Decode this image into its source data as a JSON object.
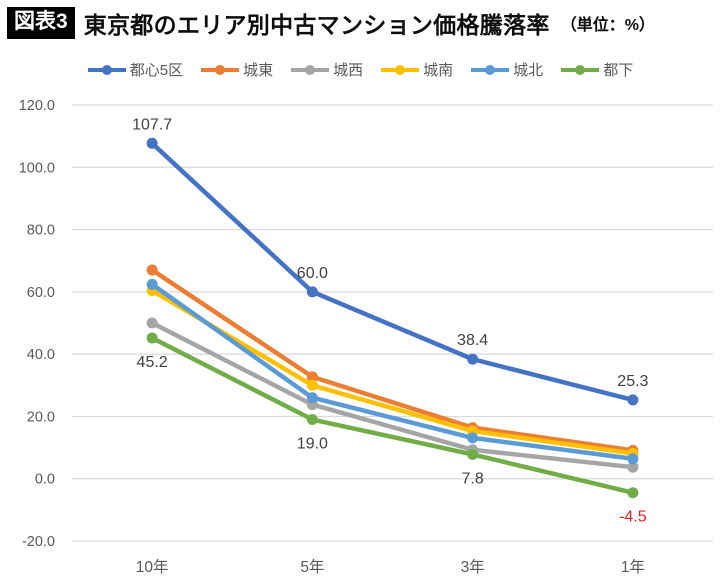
{
  "header": {
    "badge": "図表3",
    "title": "東京都のエリア別中古マンション価格騰落率",
    "unit": "（単位：%）"
  },
  "chart_data": {
    "type": "line",
    "title": "東京都のエリア別中古マンション価格騰落率（単位：%）",
    "categories": [
      "10年",
      "5年",
      "3年",
      "1年"
    ],
    "series": [
      {
        "name": "都心5区",
        "color": "#4472C4",
        "values": [
          107.7,
          60.0,
          38.4,
          25.3
        ],
        "labels": [
          "107.7",
          "60.0",
          "38.4",
          "25.3"
        ],
        "label_position": "above"
      },
      {
        "name": "城東",
        "color": "#ED7D31",
        "values": [
          67.0,
          32.7,
          16.4,
          9.1
        ]
      },
      {
        "name": "城西",
        "color": "#A5A5A5",
        "values": [
          50.0,
          23.8,
          9.3,
          3.7
        ]
      },
      {
        "name": "城南",
        "color": "#FFC000",
        "values": [
          60.4,
          30.0,
          15.3,
          8.1
        ]
      },
      {
        "name": "城北",
        "color": "#5B9BD5",
        "values": [
          62.4,
          26.0,
          13.1,
          6.4
        ]
      },
      {
        "name": "都下",
        "color": "#70AD47",
        "values": [
          45.2,
          19.0,
          7.8,
          -4.5
        ],
        "labels": [
          "45.2",
          "19.0",
          "7.8",
          "-4.5"
        ],
        "label_position": "below",
        "label_colors": [
          "#404040",
          "#404040",
          "#404040",
          "#E02020"
        ]
      }
    ],
    "xlabel": "",
    "ylabel": "",
    "ylim": [
      -20,
      120
    ],
    "ytick_step": 20,
    "yticks": [
      "120.0",
      "100.0",
      "80.0",
      "60.0",
      "40.0",
      "20.0",
      "0.0",
      "-20.0"
    ],
    "grid": true,
    "legend_position": "top",
    "grid_color": "#D9D9D9",
    "axis_label_color": "#595959",
    "data_label_color": "#404040",
    "negative_label_color": "#E02020"
  }
}
